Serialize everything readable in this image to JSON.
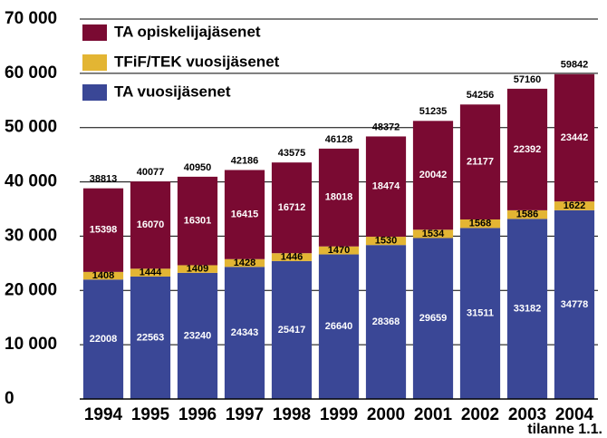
{
  "chart_data": {
    "type": "stacked_bar",
    "categories": [
      "1994",
      "1995",
      "1996",
      "1997",
      "1998",
      "1999",
      "2000",
      "2001",
      "2002",
      "2003",
      "2004"
    ],
    "series": [
      {
        "name": "TA vuosijäsenet",
        "color": "#3a4796",
        "label_color": "#ffffff",
        "values": [
          22008,
          22563,
          23240,
          24343,
          25417,
          26640,
          28368,
          29659,
          31511,
          33182,
          34778
        ]
      },
      {
        "name": "TFiF/TEK vuosijäsenet",
        "color": "#e3b533",
        "label_color": "#000000",
        "values": [
          1408,
          1444,
          1409,
          1428,
          1446,
          1470,
          1530,
          1534,
          1568,
          1586,
          1622
        ]
      },
      {
        "name": "TA opiskelijajäsenet",
        "color": "#7a0a32",
        "label_color": "#ffffff",
        "values": [
          15398,
          16070,
          16301,
          16415,
          16712,
          18018,
          18474,
          20042,
          21177,
          22392,
          23442
        ]
      }
    ],
    "totals": [
      38813,
      40077,
      40950,
      42186,
      43575,
      46128,
      48372,
      51235,
      54256,
      57160,
      59842
    ],
    "ylim": [
      0,
      70000
    ],
    "yticks": [
      0,
      {
        "value": 10000,
        "label": "10 000"
      },
      {
        "value": 20000,
        "label": "20 000"
      },
      {
        "value": 30000,
        "label": "30 000"
      },
      {
        "value": 40000,
        "label": "40 000"
      },
      {
        "value": 50000,
        "label": "50 000"
      },
      {
        "value": 60000,
        "label": "60 000"
      },
      {
        "value": 70000,
        "label": "70 000"
      }
    ],
    "grid": true,
    "legend": "top-left",
    "note": "tilanne 1.1."
  }
}
